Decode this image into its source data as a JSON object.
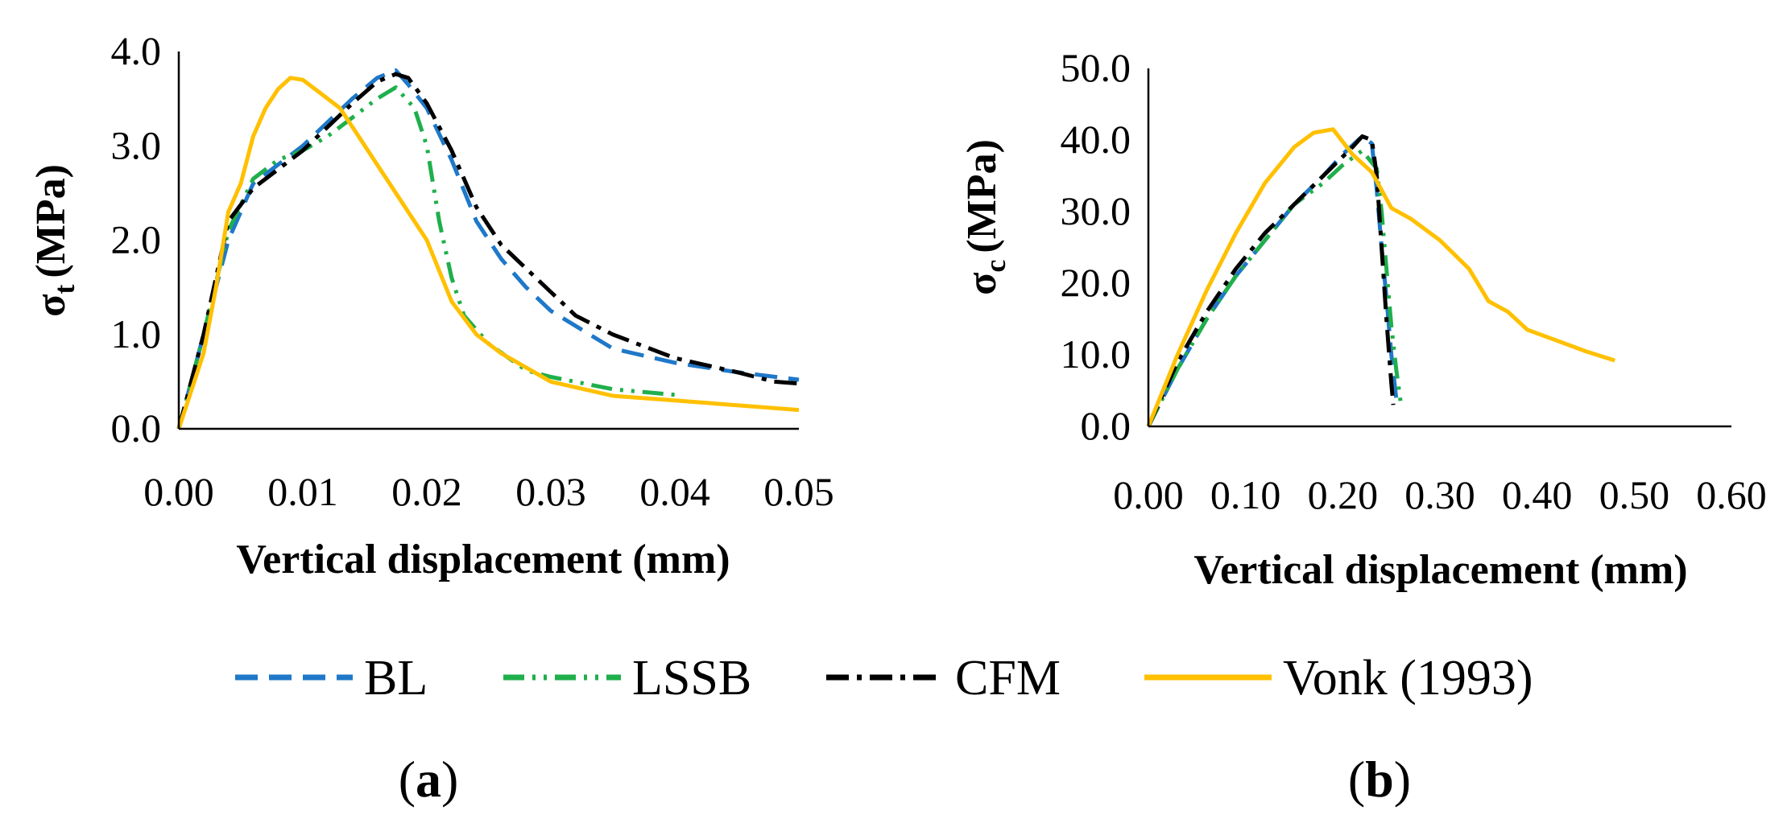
{
  "chart_data": [
    {
      "type": "line",
      "panel": "a",
      "xlabel": "Vertical displacement (mm)",
      "ylabel": "σt (MPa)",
      "ylabel_symbol": "σ",
      "ylabel_sub": "t",
      "ylabel_unit": "(MPa)",
      "xlim": [
        0,
        0.05
      ],
      "ylim": [
        0,
        4.0
      ],
      "x_ticks": [
        0,
        0.01,
        0.02,
        0.03,
        0.04,
        0.05
      ],
      "x_tick_labels": [
        "0.00",
        "0.01",
        "0.02",
        "0.03",
        "0.04",
        "0.05"
      ],
      "y_ticks": [
        0,
        1,
        2,
        3,
        4
      ],
      "y_tick_labels": [
        "0.0",
        "1.0",
        "2.0",
        "3.0",
        "4.0"
      ],
      "series": [
        {
          "name": "BL",
          "key": "bl",
          "points": [
            [
              0,
              0
            ],
            [
              0.002,
              1.0
            ],
            [
              0.004,
              2.0
            ],
            [
              0.006,
              2.6
            ],
            [
              0.008,
              2.8
            ],
            [
              0.01,
              3.0
            ],
            [
              0.012,
              3.25
            ],
            [
              0.014,
              3.5
            ],
            [
              0.016,
              3.72
            ],
            [
              0.0175,
              3.8
            ],
            [
              0.0185,
              3.65
            ],
            [
              0.02,
              3.4
            ],
            [
              0.022,
              2.85
            ],
            [
              0.024,
              2.2
            ],
            [
              0.026,
              1.8
            ],
            [
              0.028,
              1.5
            ],
            [
              0.03,
              1.25
            ],
            [
              0.035,
              0.85
            ],
            [
              0.04,
              0.7
            ],
            [
              0.045,
              0.6
            ],
            [
              0.05,
              0.52
            ]
          ]
        },
        {
          "name": "LSSB",
          "key": "lssb",
          "points": [
            [
              0,
              0
            ],
            [
              0.002,
              1.0
            ],
            [
              0.004,
              2.1
            ],
            [
              0.006,
              2.65
            ],
            [
              0.008,
              2.85
            ],
            [
              0.01,
              2.95
            ],
            [
              0.012,
              3.1
            ],
            [
              0.014,
              3.3
            ],
            [
              0.016,
              3.5
            ],
            [
              0.0175,
              3.62
            ],
            [
              0.019,
              3.4
            ],
            [
              0.02,
              3.0
            ],
            [
              0.021,
              2.2
            ],
            [
              0.022,
              1.6
            ],
            [
              0.023,
              1.2
            ],
            [
              0.025,
              0.9
            ],
            [
              0.028,
              0.62
            ],
            [
              0.03,
              0.55
            ],
            [
              0.035,
              0.42
            ],
            [
              0.04,
              0.36
            ]
          ]
        },
        {
          "name": "CFM",
          "key": "cfm",
          "points": [
            [
              0,
              0
            ],
            [
              0.002,
              1.0
            ],
            [
              0.004,
              2.2
            ],
            [
              0.006,
              2.55
            ],
            [
              0.008,
              2.75
            ],
            [
              0.01,
              2.95
            ],
            [
              0.012,
              3.2
            ],
            [
              0.014,
              3.45
            ],
            [
              0.016,
              3.68
            ],
            [
              0.0175,
              3.76
            ],
            [
              0.0185,
              3.72
            ],
            [
              0.02,
              3.45
            ],
            [
              0.022,
              2.95
            ],
            [
              0.024,
              2.35
            ],
            [
              0.026,
              1.95
            ],
            [
              0.028,
              1.7
            ],
            [
              0.03,
              1.45
            ],
            [
              0.032,
              1.2
            ],
            [
              0.035,
              1.0
            ],
            [
              0.04,
              0.75
            ],
            [
              0.045,
              0.6
            ],
            [
              0.048,
              0.5
            ],
            [
              0.05,
              0.48
            ]
          ]
        },
        {
          "name": "Vonk (1993)",
          "key": "vonk",
          "points": [
            [
              0,
              0
            ],
            [
              0.002,
              0.8
            ],
            [
              0.003,
              1.5
            ],
            [
              0.004,
              2.3
            ],
            [
              0.005,
              2.6
            ],
            [
              0.006,
              3.1
            ],
            [
              0.007,
              3.4
            ],
            [
              0.008,
              3.6
            ],
            [
              0.009,
              3.72
            ],
            [
              0.01,
              3.7
            ],
            [
              0.011,
              3.6
            ],
            [
              0.012,
              3.5
            ],
            [
              0.013,
              3.4
            ],
            [
              0.014,
              3.2
            ],
            [
              0.016,
              2.8
            ],
            [
              0.018,
              2.4
            ],
            [
              0.02,
              2.0
            ],
            [
              0.022,
              1.35
            ],
            [
              0.024,
              1.0
            ],
            [
              0.026,
              0.8
            ],
            [
              0.028,
              0.65
            ],
            [
              0.03,
              0.5
            ],
            [
              0.035,
              0.35
            ],
            [
              0.04,
              0.3
            ],
            [
              0.045,
              0.25
            ],
            [
              0.05,
              0.2
            ]
          ]
        }
      ]
    },
    {
      "type": "line",
      "panel": "b",
      "xlabel": "Vertical displacement (mm)",
      "ylabel": "σc (MPa)",
      "ylabel_symbol": "σ",
      "ylabel_sub": "c",
      "ylabel_unit": "(MPa)",
      "xlim": [
        0,
        0.6
      ],
      "ylim": [
        0,
        50.0
      ],
      "x_ticks": [
        0,
        0.1,
        0.2,
        0.3,
        0.4,
        0.5,
        0.6
      ],
      "x_tick_labels": [
        "0.00",
        "0.10",
        "0.20",
        "0.30",
        "0.40",
        "0.50",
        "0.60"
      ],
      "y_ticks": [
        0,
        10,
        20,
        30,
        40,
        50
      ],
      "y_tick_labels": [
        "0.0",
        "10.0",
        "20.0",
        "30.0",
        "40.0",
        "50.0"
      ],
      "series": [
        {
          "name": "BL",
          "key": "bl",
          "points": [
            [
              0,
              0
            ],
            [
              0.03,
              8
            ],
            [
              0.06,
              15
            ],
            [
              0.09,
              21
            ],
            [
              0.12,
              26
            ],
            [
              0.15,
              31
            ],
            [
              0.18,
              35
            ],
            [
              0.2,
              38
            ],
            [
              0.22,
              40.5
            ],
            [
              0.23,
              39.5
            ],
            [
              0.235,
              33
            ],
            [
              0.24,
              25
            ],
            [
              0.245,
              18
            ],
            [
              0.25,
              10
            ],
            [
              0.255,
              4
            ]
          ]
        },
        {
          "name": "LSSB",
          "key": "lssb",
          "points": [
            [
              0,
              0
            ],
            [
              0.03,
              8
            ],
            [
              0.06,
              15
            ],
            [
              0.09,
              21
            ],
            [
              0.12,
              26
            ],
            [
              0.15,
              31
            ],
            [
              0.18,
              34
            ],
            [
              0.2,
              36.5
            ],
            [
              0.22,
              38.5
            ],
            [
              0.235,
              36
            ],
            [
              0.24,
              30
            ],
            [
              0.245,
              22
            ],
            [
              0.25,
              14
            ],
            [
              0.255,
              8
            ],
            [
              0.26,
              3
            ]
          ]
        },
        {
          "name": "CFM",
          "key": "cfm",
          "points": [
            [
              0,
              0
            ],
            [
              0.03,
              9
            ],
            [
              0.06,
              16
            ],
            [
              0.09,
              22
            ],
            [
              0.12,
              27
            ],
            [
              0.15,
              31
            ],
            [
              0.18,
              35
            ],
            [
              0.21,
              39
            ],
            [
              0.22,
              40.5
            ],
            [
              0.23,
              40
            ],
            [
              0.235,
              35
            ],
            [
              0.24,
              25
            ],
            [
              0.245,
              15
            ],
            [
              0.25,
              6
            ],
            [
              0.252,
              3
            ]
          ]
        },
        {
          "name": "Vonk (1993)",
          "key": "vonk",
          "points": [
            [
              0,
              0
            ],
            [
              0.03,
              10
            ],
            [
              0.06,
              19
            ],
            [
              0.09,
              27
            ],
            [
              0.12,
              34
            ],
            [
              0.15,
              39
            ],
            [
              0.17,
              41
            ],
            [
              0.19,
              41.5
            ],
            [
              0.21,
              38
            ],
            [
              0.23,
              35.5
            ],
            [
              0.24,
              33
            ],
            [
              0.25,
              30.5
            ],
            [
              0.27,
              29
            ],
            [
              0.3,
              26
            ],
            [
              0.33,
              22
            ],
            [
              0.35,
              17.5
            ],
            [
              0.37,
              16
            ],
            [
              0.39,
              13.5
            ],
            [
              0.42,
              12
            ],
            [
              0.45,
              10.5
            ],
            [
              0.48,
              9.2
            ]
          ]
        }
      ]
    }
  ],
  "legend": [
    {
      "key": "bl",
      "label": "BL"
    },
    {
      "key": "lssb",
      "label": "LSSB"
    },
    {
      "key": "cfm",
      "label": "CFM"
    },
    {
      "key": "vonk",
      "label": "Vonk (1993)"
    }
  ],
  "styles": {
    "bl": {
      "color": "#1F78C8",
      "dash": "28 14"
    },
    "lssb": {
      "color": "#1FAF4B",
      "dash": "26 10 4 10 4 10"
    },
    "cfm": {
      "color": "#000000",
      "dash": "28 10 6 10"
    },
    "vonk": {
      "color": "#FFC000",
      "dash": ""
    }
  },
  "panel_labels": [
    {
      "open": "(",
      "letter": "a",
      "close": ")"
    },
    {
      "open": "(",
      "letter": "b",
      "close": ")"
    }
  ]
}
